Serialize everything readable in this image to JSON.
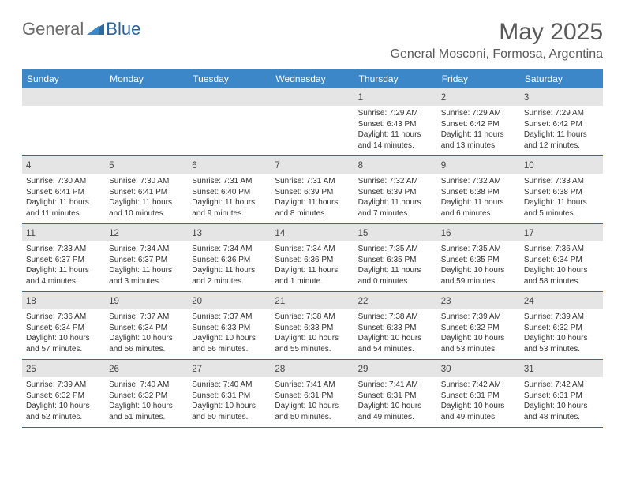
{
  "logo": {
    "part1": "General",
    "part2": "Blue"
  },
  "title": "May 2025",
  "location": "General Mosconi, Formosa, Argentina",
  "colors": {
    "header_bg": "#3b87c8",
    "border": "#2d6ca3",
    "daynum_bg": "#e5e5e5",
    "logo_gray": "#6b6b6b",
    "logo_blue": "#2962a0",
    "text": "#333333",
    "title_gray": "#5a5a5a"
  },
  "weekdays": [
    "Sunday",
    "Monday",
    "Tuesday",
    "Wednesday",
    "Thursday",
    "Friday",
    "Saturday"
  ],
  "days": [
    {
      "n": "",
      "sunrise": "",
      "sunset": "",
      "daylight": ""
    },
    {
      "n": "",
      "sunrise": "",
      "sunset": "",
      "daylight": ""
    },
    {
      "n": "",
      "sunrise": "",
      "sunset": "",
      "daylight": ""
    },
    {
      "n": "",
      "sunrise": "",
      "sunset": "",
      "daylight": ""
    },
    {
      "n": "1",
      "sunrise": "Sunrise: 7:29 AM",
      "sunset": "Sunset: 6:43 PM",
      "daylight": "Daylight: 11 hours and 14 minutes."
    },
    {
      "n": "2",
      "sunrise": "Sunrise: 7:29 AM",
      "sunset": "Sunset: 6:42 PM",
      "daylight": "Daylight: 11 hours and 13 minutes."
    },
    {
      "n": "3",
      "sunrise": "Sunrise: 7:29 AM",
      "sunset": "Sunset: 6:42 PM",
      "daylight": "Daylight: 11 hours and 12 minutes."
    },
    {
      "n": "4",
      "sunrise": "Sunrise: 7:30 AM",
      "sunset": "Sunset: 6:41 PM",
      "daylight": "Daylight: 11 hours and 11 minutes."
    },
    {
      "n": "5",
      "sunrise": "Sunrise: 7:30 AM",
      "sunset": "Sunset: 6:41 PM",
      "daylight": "Daylight: 11 hours and 10 minutes."
    },
    {
      "n": "6",
      "sunrise": "Sunrise: 7:31 AM",
      "sunset": "Sunset: 6:40 PM",
      "daylight": "Daylight: 11 hours and 9 minutes."
    },
    {
      "n": "7",
      "sunrise": "Sunrise: 7:31 AM",
      "sunset": "Sunset: 6:39 PM",
      "daylight": "Daylight: 11 hours and 8 minutes."
    },
    {
      "n": "8",
      "sunrise": "Sunrise: 7:32 AM",
      "sunset": "Sunset: 6:39 PM",
      "daylight": "Daylight: 11 hours and 7 minutes."
    },
    {
      "n": "9",
      "sunrise": "Sunrise: 7:32 AM",
      "sunset": "Sunset: 6:38 PM",
      "daylight": "Daylight: 11 hours and 6 minutes."
    },
    {
      "n": "10",
      "sunrise": "Sunrise: 7:33 AM",
      "sunset": "Sunset: 6:38 PM",
      "daylight": "Daylight: 11 hours and 5 minutes."
    },
    {
      "n": "11",
      "sunrise": "Sunrise: 7:33 AM",
      "sunset": "Sunset: 6:37 PM",
      "daylight": "Daylight: 11 hours and 4 minutes."
    },
    {
      "n": "12",
      "sunrise": "Sunrise: 7:34 AM",
      "sunset": "Sunset: 6:37 PM",
      "daylight": "Daylight: 11 hours and 3 minutes."
    },
    {
      "n": "13",
      "sunrise": "Sunrise: 7:34 AM",
      "sunset": "Sunset: 6:36 PM",
      "daylight": "Daylight: 11 hours and 2 minutes."
    },
    {
      "n": "14",
      "sunrise": "Sunrise: 7:34 AM",
      "sunset": "Sunset: 6:36 PM",
      "daylight": "Daylight: 11 hours and 1 minute."
    },
    {
      "n": "15",
      "sunrise": "Sunrise: 7:35 AM",
      "sunset": "Sunset: 6:35 PM",
      "daylight": "Daylight: 11 hours and 0 minutes."
    },
    {
      "n": "16",
      "sunrise": "Sunrise: 7:35 AM",
      "sunset": "Sunset: 6:35 PM",
      "daylight": "Daylight: 10 hours and 59 minutes."
    },
    {
      "n": "17",
      "sunrise": "Sunrise: 7:36 AM",
      "sunset": "Sunset: 6:34 PM",
      "daylight": "Daylight: 10 hours and 58 minutes."
    },
    {
      "n": "18",
      "sunrise": "Sunrise: 7:36 AM",
      "sunset": "Sunset: 6:34 PM",
      "daylight": "Daylight: 10 hours and 57 minutes."
    },
    {
      "n": "19",
      "sunrise": "Sunrise: 7:37 AM",
      "sunset": "Sunset: 6:34 PM",
      "daylight": "Daylight: 10 hours and 56 minutes."
    },
    {
      "n": "20",
      "sunrise": "Sunrise: 7:37 AM",
      "sunset": "Sunset: 6:33 PM",
      "daylight": "Daylight: 10 hours and 56 minutes."
    },
    {
      "n": "21",
      "sunrise": "Sunrise: 7:38 AM",
      "sunset": "Sunset: 6:33 PM",
      "daylight": "Daylight: 10 hours and 55 minutes."
    },
    {
      "n": "22",
      "sunrise": "Sunrise: 7:38 AM",
      "sunset": "Sunset: 6:33 PM",
      "daylight": "Daylight: 10 hours and 54 minutes."
    },
    {
      "n": "23",
      "sunrise": "Sunrise: 7:39 AM",
      "sunset": "Sunset: 6:32 PM",
      "daylight": "Daylight: 10 hours and 53 minutes."
    },
    {
      "n": "24",
      "sunrise": "Sunrise: 7:39 AM",
      "sunset": "Sunset: 6:32 PM",
      "daylight": "Daylight: 10 hours and 53 minutes."
    },
    {
      "n": "25",
      "sunrise": "Sunrise: 7:39 AM",
      "sunset": "Sunset: 6:32 PM",
      "daylight": "Daylight: 10 hours and 52 minutes."
    },
    {
      "n": "26",
      "sunrise": "Sunrise: 7:40 AM",
      "sunset": "Sunset: 6:32 PM",
      "daylight": "Daylight: 10 hours and 51 minutes."
    },
    {
      "n": "27",
      "sunrise": "Sunrise: 7:40 AM",
      "sunset": "Sunset: 6:31 PM",
      "daylight": "Daylight: 10 hours and 50 minutes."
    },
    {
      "n": "28",
      "sunrise": "Sunrise: 7:41 AM",
      "sunset": "Sunset: 6:31 PM",
      "daylight": "Daylight: 10 hours and 50 minutes."
    },
    {
      "n": "29",
      "sunrise": "Sunrise: 7:41 AM",
      "sunset": "Sunset: 6:31 PM",
      "daylight": "Daylight: 10 hours and 49 minutes."
    },
    {
      "n": "30",
      "sunrise": "Sunrise: 7:42 AM",
      "sunset": "Sunset: 6:31 PM",
      "daylight": "Daylight: 10 hours and 49 minutes."
    },
    {
      "n": "31",
      "sunrise": "Sunrise: 7:42 AM",
      "sunset": "Sunset: 6:31 PM",
      "daylight": "Daylight: 10 hours and 48 minutes."
    }
  ]
}
